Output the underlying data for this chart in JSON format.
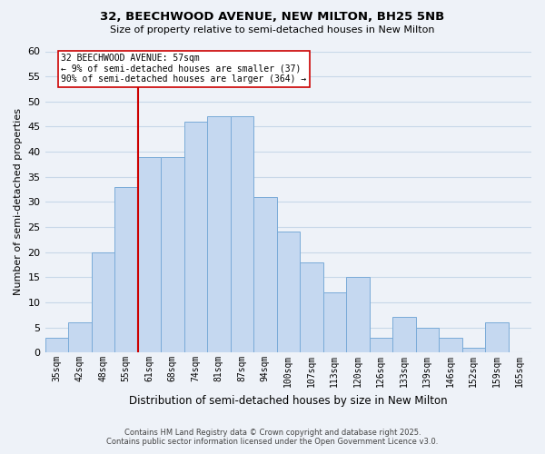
{
  "title1": "32, BEECHWOOD AVENUE, NEW MILTON, BH25 5NB",
  "title2": "Size of property relative to semi-detached houses in New Milton",
  "xlabel": "Distribution of semi-detached houses by size in New Milton",
  "ylabel": "Number of semi-detached properties",
  "footer1": "Contains HM Land Registry data © Crown copyright and database right 2025.",
  "footer2": "Contains public sector information licensed under the Open Government Licence v3.0.",
  "bin_labels": [
    "35sqm",
    "42sqm",
    "48sqm",
    "55sqm",
    "61sqm",
    "68sqm",
    "74sqm",
    "81sqm",
    "87sqm",
    "94sqm",
    "100sqm",
    "107sqm",
    "113sqm",
    "120sqm",
    "126sqm",
    "133sqm",
    "139sqm",
    "146sqm",
    "152sqm",
    "159sqm",
    "165sqm"
  ],
  "bar_heights": [
    3,
    6,
    20,
    33,
    39,
    39,
    46,
    47,
    47,
    31,
    24,
    18,
    12,
    15,
    3,
    7,
    5,
    3,
    1,
    6,
    0
  ],
  "bar_color": "#c5d8f0",
  "bar_edge_color": "#7aabd8",
  "grid_color": "#c8d8e8",
  "vline_x_index": 3.5,
  "vline_color": "#cc0000",
  "annotation_text": "32 BEECHWOOD AVENUE: 57sqm\n← 9% of semi-detached houses are smaller (37)\n90% of semi-detached houses are larger (364) →",
  "annotation_box_color": "#ffffff",
  "annotation_box_edge": "#cc0000",
  "ylim": [
    0,
    60
  ],
  "yticks": [
    0,
    5,
    10,
    15,
    20,
    25,
    30,
    35,
    40,
    45,
    50,
    55,
    60
  ],
  "background_color": "#eef2f8"
}
